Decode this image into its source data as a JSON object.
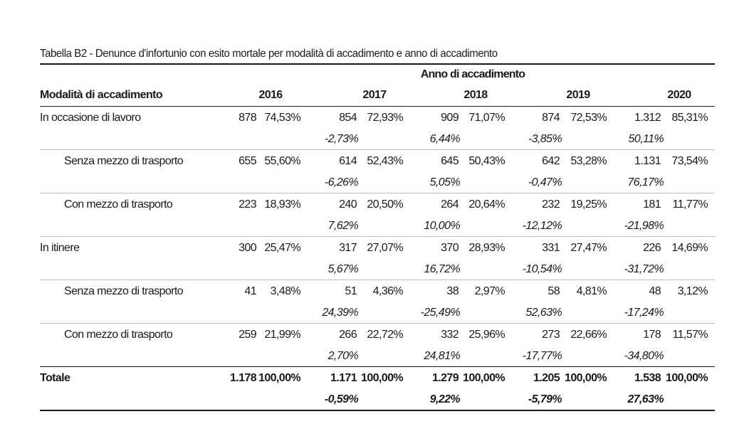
{
  "title": "Tabella B2 - Denunce d'infortunio con esito mortale per modalità di accadimento e anno di accadimento",
  "header": {
    "group_label": "Anno di accadimento",
    "row_label": "Modalità di accadimento",
    "years": [
      "2016",
      "2017",
      "2018",
      "2019",
      "2020"
    ]
  },
  "rows": [
    {
      "label": "In occasione di lavoro",
      "indent": false,
      "bold": false,
      "values": [
        {
          "count": "878",
          "pct": "74,53%",
          "change": ""
        },
        {
          "count": "854",
          "pct": "72,93%",
          "change": "-2,73%"
        },
        {
          "count": "909",
          "pct": "71,07%",
          "change": "6,44%"
        },
        {
          "count": "874",
          "pct": "72,53%",
          "change": "-3,85%"
        },
        {
          "count": "1.312",
          "pct": "85,31%",
          "change": "50,11%"
        }
      ]
    },
    {
      "label": "Senza mezzo di trasporto",
      "indent": true,
      "bold": false,
      "values": [
        {
          "count": "655",
          "pct": "55,60%",
          "change": ""
        },
        {
          "count": "614",
          "pct": "52,43%",
          "change": "-6,26%"
        },
        {
          "count": "645",
          "pct": "50,43%",
          "change": "5,05%"
        },
        {
          "count": "642",
          "pct": "53,28%",
          "change": "-0,47%"
        },
        {
          "count": "1.131",
          "pct": "73,54%",
          "change": "76,17%"
        }
      ]
    },
    {
      "label": "Con mezzo di trasporto",
      "indent": true,
      "bold": false,
      "values": [
        {
          "count": "223",
          "pct": "18,93%",
          "change": ""
        },
        {
          "count": "240",
          "pct": "20,50%",
          "change": "7,62%"
        },
        {
          "count": "264",
          "pct": "20,64%",
          "change": "10,00%"
        },
        {
          "count": "232",
          "pct": "19,25%",
          "change": "-12,12%"
        },
        {
          "count": "181",
          "pct": "11,77%",
          "change": "-21,98%"
        }
      ]
    },
    {
      "label": "In itinere",
      "indent": false,
      "bold": false,
      "values": [
        {
          "count": "300",
          "pct": "25,47%",
          "change": ""
        },
        {
          "count": "317",
          "pct": "27,07%",
          "change": "5,67%"
        },
        {
          "count": "370",
          "pct": "28,93%",
          "change": "16,72%"
        },
        {
          "count": "331",
          "pct": "27,47%",
          "change": "-10,54%"
        },
        {
          "count": "226",
          "pct": "14,69%",
          "change": "-31,72%"
        }
      ]
    },
    {
      "label": "Senza mezzo di trasporto",
      "indent": true,
      "bold": false,
      "values": [
        {
          "count": "41",
          "pct": "3,48%",
          "change": ""
        },
        {
          "count": "51",
          "pct": "4,36%",
          "change": "24,39%"
        },
        {
          "count": "38",
          "pct": "2,97%",
          "change": "-25,49%"
        },
        {
          "count": "58",
          "pct": "4,81%",
          "change": "52,63%"
        },
        {
          "count": "48",
          "pct": "3,12%",
          "change": "-17,24%"
        }
      ]
    },
    {
      "label": "Con mezzo di trasporto",
      "indent": true,
      "bold": false,
      "values": [
        {
          "count": "259",
          "pct": "21,99%",
          "change": ""
        },
        {
          "count": "266",
          "pct": "22,72%",
          "change": "2,70%"
        },
        {
          "count": "332",
          "pct": "25,96%",
          "change": "24,81%"
        },
        {
          "count": "273",
          "pct": "22,66%",
          "change": "-17,77%"
        },
        {
          "count": "178",
          "pct": "11,57%",
          "change": "-34,80%"
        }
      ]
    },
    {
      "label": "Totale",
      "indent": false,
      "bold": true,
      "values": [
        {
          "count": "1.178",
          "pct": "100,00%",
          "change": ""
        },
        {
          "count": "1.171",
          "pct": "100,00%",
          "change": "-0,59%"
        },
        {
          "count": "1.279",
          "pct": "100,00%",
          "change": "9,22%"
        },
        {
          "count": "1.205",
          "pct": "100,00%",
          "change": "-5,79%"
        },
        {
          "count": "1.538",
          "pct": "100,00%",
          "change": "27,63%"
        }
      ]
    }
  ]
}
